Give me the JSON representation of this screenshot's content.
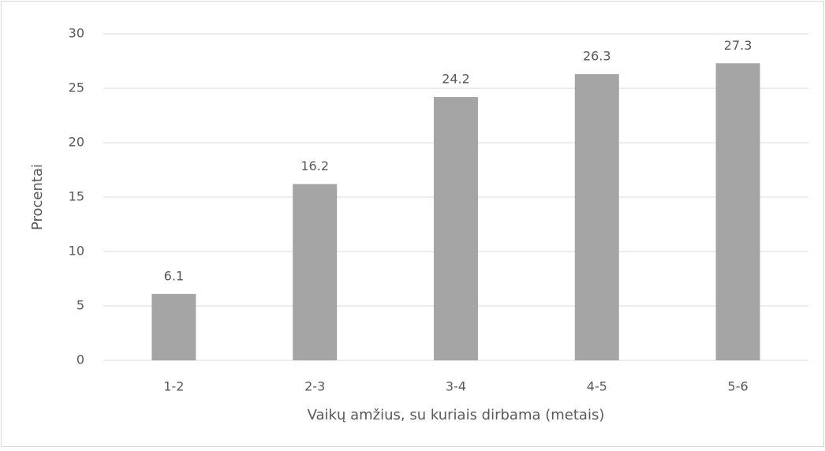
{
  "chart_data": {
    "type": "bar",
    "x_label": "Vaikų amžius, su kuriais dirbama (metais)",
    "y_label": "Procentai",
    "categories": [
      "1-2",
      "2-3",
      "3-4",
      "4-5",
      "5-6"
    ],
    "values": [
      6.1,
      16.2,
      24.2,
      26.3,
      27.3
    ],
    "color": "#a5a5a5",
    "ylim": [
      0,
      30
    ],
    "yticks": [
      0,
      5,
      10,
      15,
      20,
      25,
      30
    ],
    "grid": true
  }
}
